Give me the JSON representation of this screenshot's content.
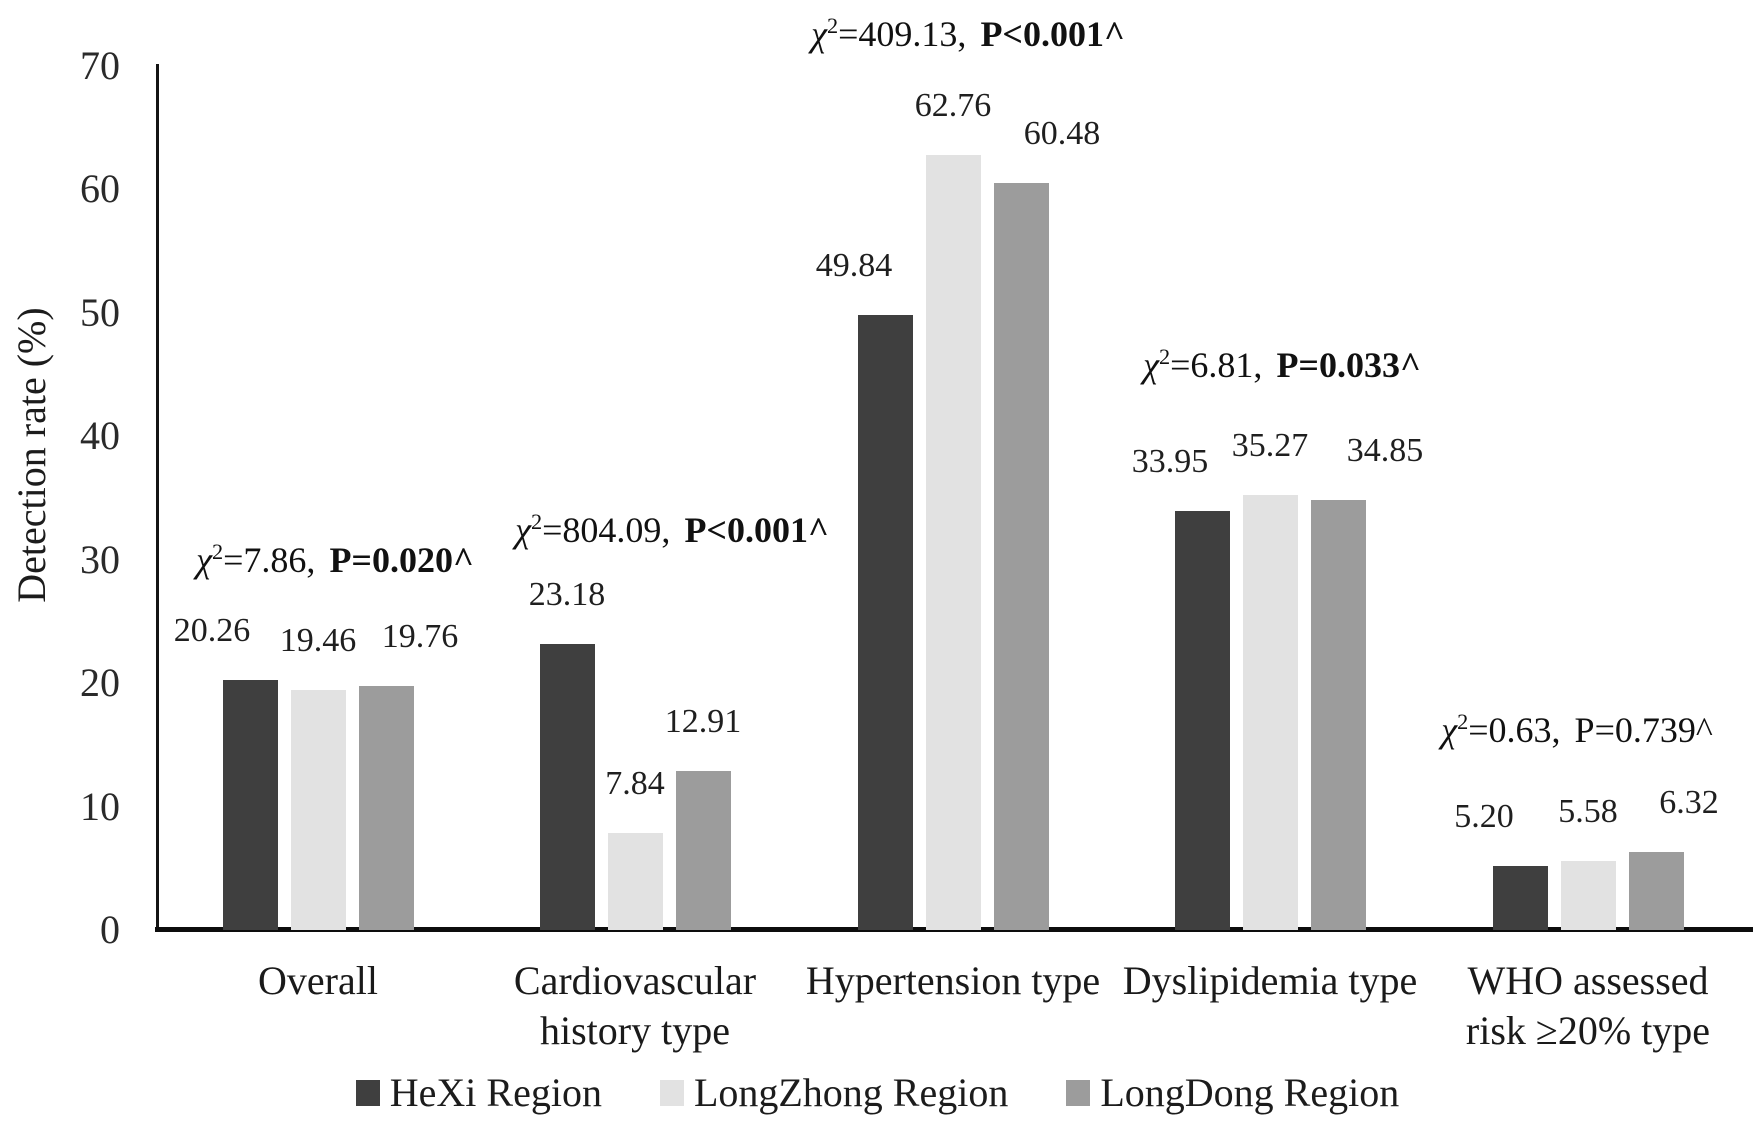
{
  "chart_data": {
    "type": "bar",
    "title": "",
    "xlabel": "",
    "ylabel": "Detection rate (%)",
    "ylim": [
      0,
      70
    ],
    "yticks": [
      0,
      10,
      20,
      30,
      40,
      50,
      60,
      70
    ],
    "grid": false,
    "legend_position": "bottom",
    "categories": [
      "Overall",
      "Cardiovascular\nhistory type",
      "Hypertension type",
      "Dyslipidemia type",
      "WHO assessed\nrisk ≥20% type"
    ],
    "series": [
      {
        "name": "HeXi Region",
        "color": "#3f3f3f",
        "values": [
          20.26,
          23.18,
          49.84,
          33.95,
          5.2
        ],
        "value_labels": [
          "20.26",
          "23.18",
          "49.84",
          "33.95",
          "5.20"
        ]
      },
      {
        "name": "LongZhong Region",
        "color": "#e2e2e2",
        "values": [
          19.46,
          7.84,
          62.76,
          35.27,
          5.58
        ],
        "value_labels": [
          "19.46",
          "7.84",
          "62.76",
          "35.27",
          "5.58"
        ]
      },
      {
        "name": "LongDong Region",
        "color": "#9c9c9c",
        "values": [
          19.76,
          12.91,
          60.48,
          34.85,
          6.32
        ],
        "value_labels": [
          "19.76",
          "12.91",
          "60.48",
          "34.85",
          "6.32"
        ]
      }
    ],
    "annotations": [
      {
        "chi_symbol": "χ²",
        "chi_stat": "7.86",
        "p_text": "P=0.020^",
        "p_bold": true
      },
      {
        "chi_symbol": "χ²",
        "chi_stat": "804.09",
        "p_text": "P<0.001^",
        "p_bold": true
      },
      {
        "chi_symbol": "χ²",
        "chi_stat": "409.13",
        "p_text": "P<0.001^",
        "p_bold": true
      },
      {
        "chi_symbol": "χ²",
        "chi_stat": "6.81",
        "p_text": "P=0.033^",
        "p_bold": true
      },
      {
        "chi_symbol": "χ²",
        "chi_stat": "0.63",
        "p_text": "P=0.739^",
        "p_bold": false
      }
    ]
  }
}
